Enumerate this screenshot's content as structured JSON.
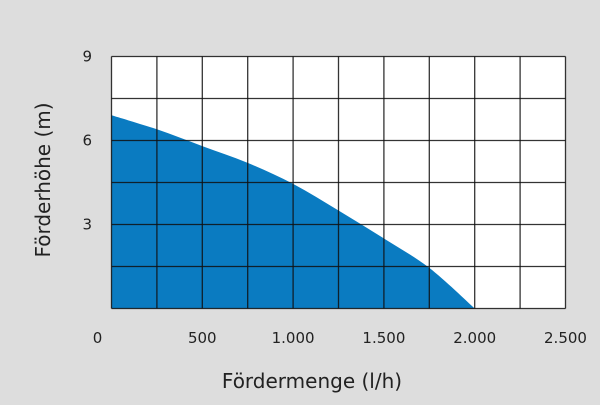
{
  "chart_data": {
    "type": "area",
    "title": "",
    "xlabel": "Fördermenge (l/h)",
    "ylabel": "Förderhöhe (m)",
    "xlim": [
      0,
      2500
    ],
    "ylim": [
      0,
      9
    ],
    "x_grid_step": 250,
    "y_grid_step": 1.5,
    "grid": true,
    "x_ticks": [
      0,
      500,
      1000,
      1500,
      2000,
      2500
    ],
    "x_tick_labels": [
      "0",
      "500",
      "1.000",
      "1.500",
      "2.000",
      "2.500"
    ],
    "y_ticks": [
      3,
      6,
      9
    ],
    "y_tick_labels": [
      "3",
      "6",
      "9"
    ],
    "series": [
      {
        "x": [
          0,
          250,
          500,
          750,
          1000,
          1250,
          1500,
          1750,
          2000
        ],
        "y": [
          6.9,
          6.4,
          5.8,
          5.2,
          4.45,
          3.5,
          2.5,
          1.45,
          0
        ],
        "color": "#0a7bc1"
      }
    ],
    "colors": {
      "background": "#dddddd",
      "plot_background": "#ffffff",
      "grid": "#111111"
    }
  }
}
